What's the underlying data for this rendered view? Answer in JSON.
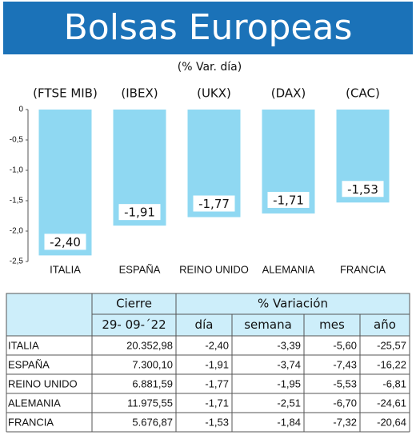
{
  "chart_data": {
    "type": "bar",
    "title": "Bolsas Europeas",
    "subtitle": "(% Var. día)",
    "categories": [
      "ITALIA",
      "ESPAÑA",
      "REINO UNIDO",
      "ALEMANIA",
      "FRANCIA"
    ],
    "index_labels": [
      "(FTSE MIB)",
      "(IBEX)",
      "(UKX)",
      "(DAX)",
      "(CAC)"
    ],
    "values": [
      -2.4,
      -1.91,
      -1.77,
      -1.71,
      -1.53
    ],
    "value_labels": [
      "-2,40",
      "-1,91",
      "-1,77",
      "-1,71",
      "-1,53"
    ],
    "color": "#8fd8f2",
    "ylim": [
      -2.5,
      0
    ],
    "yticks": [
      0,
      {
        "value": -0.5,
        "label": "-0,5"
      },
      {
        "value": -1,
        "label": "-1,0"
      },
      {
        "value": -1.5,
        "label": "-1,5"
      },
      {
        "value": -2,
        "label": "-2,0"
      },
      {
        "value": -2.5,
        "label": "-2,5"
      }
    ]
  },
  "table": {
    "header": [
      "Cierre",
      "% Variación"
    ],
    "subheader": [
      "29- 09-´22",
      "día",
      "semana",
      "mes",
      "año"
    ],
    "rows": [
      [
        "ITALIA",
        "20.352,98",
        "-2,40",
        "-3,39",
        "-5,60",
        "-25,57"
      ],
      [
        "ESPAÑA",
        "7.300,10",
        "-1,91",
        "-3,74",
        "-7,43",
        "-16,22"
      ],
      [
        "REINO UNIDO",
        "6.881,59",
        "-1,77",
        "-1,95",
        "-5,53",
        "-6,81"
      ],
      [
        "ALEMANIA",
        "11.975,55",
        "-1,71",
        "-2,51",
        "-6,70",
        "-24,61"
      ],
      [
        "FRANCIA",
        "5.676,87",
        "-1,53",
        "-1,84",
        "-7,32",
        "-20,64"
      ]
    ]
  }
}
